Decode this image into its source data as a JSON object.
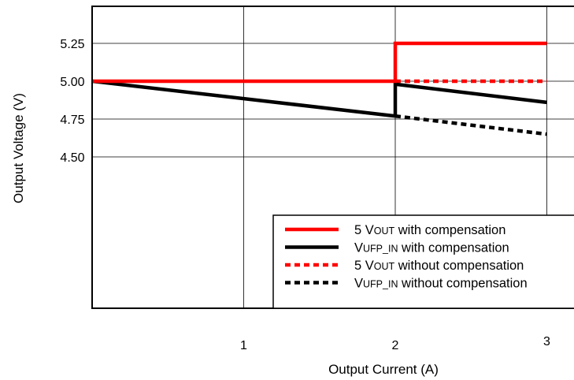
{
  "chart_data": {
    "type": "line",
    "xlabel": "Output Current (A)",
    "ylabel": "Output Voltage (V)",
    "xlim": [
      0,
      3.07
    ],
    "ylim": [
      4.0,
      5.5
    ],
    "x_ticks": [
      {
        "value": 1,
        "label": "1"
      },
      {
        "value": 2,
        "label": "2"
      },
      {
        "value": 3,
        "label": "3"
      }
    ],
    "y_ticks": [
      {
        "value": 4.5,
        "label": "4.50"
      },
      {
        "value": 4.75,
        "label": "4.75"
      },
      {
        "value": 5.0,
        "label": "5.00"
      },
      {
        "value": 5.25,
        "label": "5.25"
      }
    ],
    "grid": true,
    "legend_position": "bottom-right",
    "series": [
      {
        "name": "5 VOUT with compensation",
        "legend": {
          "prefix": "5 V",
          "sub": "OUT",
          "suffix": " with compensation"
        },
        "color": "#ff0000",
        "dashed": false,
        "points": [
          [
            0,
            5.0
          ],
          [
            2,
            5.0
          ],
          [
            2,
            5.25
          ],
          [
            3,
            5.25
          ]
        ]
      },
      {
        "name": "VUFP_IN with compensation",
        "legend": {
          "prefix": "V",
          "sub": "UFP_IN",
          "suffix": " with compensation"
        },
        "color": "#000000",
        "dashed": false,
        "points": [
          [
            0,
            5.0
          ],
          [
            2,
            4.77
          ],
          [
            2,
            4.98
          ],
          [
            3,
            4.86
          ]
        ]
      },
      {
        "name": "5 VOUT without compensation",
        "legend": {
          "prefix": "5 V",
          "sub": "OUT",
          "suffix": " without compensation"
        },
        "color": "#ff0000",
        "dashed": true,
        "points": [
          [
            2,
            5.0
          ],
          [
            3,
            5.0
          ]
        ]
      },
      {
        "name": "VUFP_IN without compensation",
        "legend": {
          "prefix": "V",
          "sub": "UFP_IN",
          "suffix": " without compensation"
        },
        "color": "#000000",
        "dashed": true,
        "points": [
          [
            2,
            4.77
          ],
          [
            3,
            4.65
          ]
        ]
      }
    ]
  }
}
